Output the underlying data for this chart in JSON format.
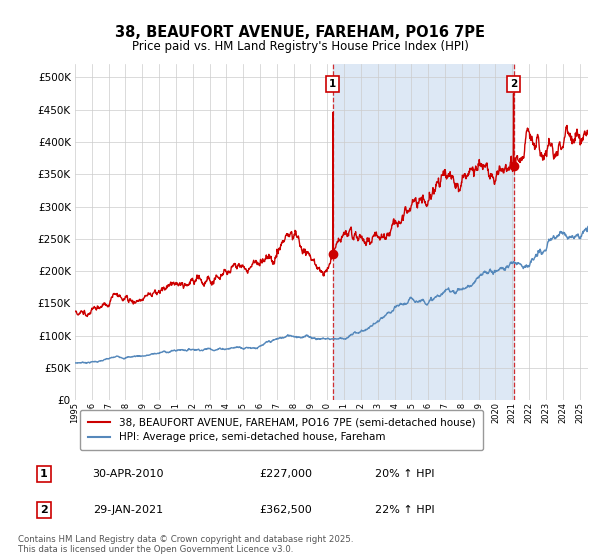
{
  "title": "38, BEAUFORT AVENUE, FAREHAM, PO16 7PE",
  "subtitle": "Price paid vs. HM Land Registry's House Price Index (HPI)",
  "ytick_values": [
    0,
    50000,
    100000,
    150000,
    200000,
    250000,
    300000,
    350000,
    400000,
    450000,
    500000
  ],
  "ylim": [
    0,
    520000
  ],
  "red_color": "#cc0000",
  "blue_color": "#5588bb",
  "blue_fill": "#dde8f5",
  "marker1_x": 2010.33,
  "marker2_x": 2021.08,
  "marker1_price": 227000,
  "marker2_price": 362500,
  "legend_label1": "38, BEAUFORT AVENUE, FAREHAM, PO16 7PE (semi-detached house)",
  "legend_label2": "HPI: Average price, semi-detached house, Fareham",
  "table_row1": [
    "1",
    "30-APR-2010",
    "£227,000",
    "20% ↑ HPI"
  ],
  "table_row2": [
    "2",
    "29-JAN-2021",
    "£362,500",
    "22% ↑ HPI"
  ],
  "footnote": "Contains HM Land Registry data © Crown copyright and database right 2025.\nThis data is licensed under the Open Government Licence v3.0.",
  "background_color": "#ffffff",
  "grid_color": "#cccccc"
}
